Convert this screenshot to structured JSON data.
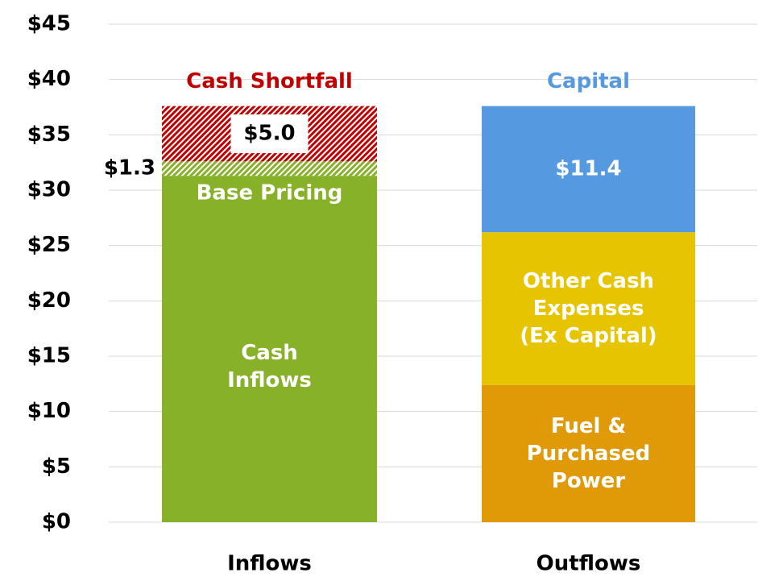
{
  "chart_data": {
    "type": "stacked_bar",
    "categories": [
      "Inflows",
      "Outflows"
    ],
    "series": [
      {
        "name": "Cash\nInflows",
        "color": "#88b12a",
        "values": [
          31.3,
          null
        ]
      },
      {
        "name": "Base Pricing",
        "color": "#88b12a",
        "hatch": true,
        "values": [
          1.3,
          null
        ],
        "value_labels": [
          "$1.3",
          null
        ]
      },
      {
        "name": "Cash Shortfall",
        "color": "#c00000",
        "hatch": true,
        "values": [
          5.0,
          null
        ],
        "value_labels": [
          "$5.0",
          null
        ]
      },
      {
        "name": "Fuel &\nPurchased\nPower",
        "color": "#e09a08",
        "values": [
          null,
          12.4
        ]
      },
      {
        "name": "Other Cash\nExpenses\n(Ex Capital)",
        "color": "#e6c400",
        "values": [
          null,
          13.8
        ]
      },
      {
        "name": "Capital",
        "color": "#5599e0",
        "values": [
          null,
          11.4
        ],
        "value_labels": [
          null,
          "$11.4"
        ]
      }
    ],
    "ylim": [
      0,
      45
    ],
    "yticks": [
      {
        "value": 0,
        "label": "$0"
      },
      {
        "value": 5,
        "label": "$5"
      },
      {
        "value": 10,
        "label": "$10"
      },
      {
        "value": 15,
        "label": "$15"
      },
      {
        "value": 20,
        "label": "$20"
      },
      {
        "value": 25,
        "label": "$25"
      },
      {
        "value": 30,
        "label": "$30"
      },
      {
        "value": 35,
        "label": "$35"
      },
      {
        "value": 40,
        "label": "$40"
      },
      {
        "value": 45,
        "label": "$45"
      }
    ],
    "grid": true
  }
}
